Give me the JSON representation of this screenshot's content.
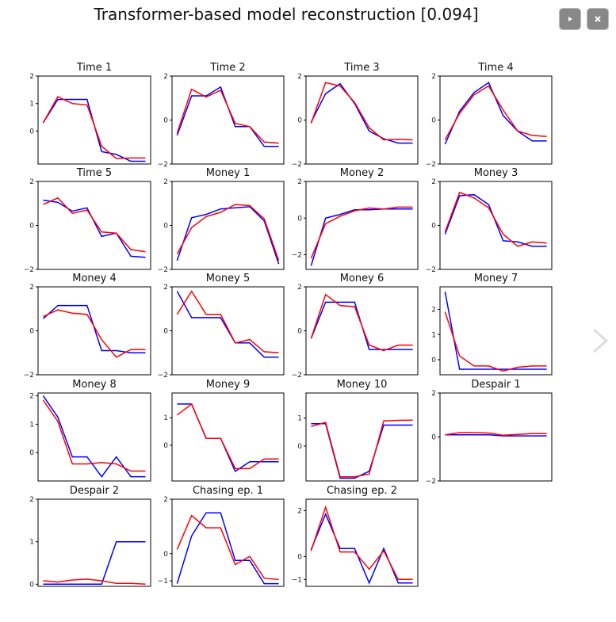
{
  "figure": {
    "title": "Transformer-based model reconstruction [0.094]"
  },
  "icons": {
    "play": "play-icon",
    "close": "close-icon",
    "next": "chevron-right-icon"
  },
  "colors": {
    "actual": "#0000ff",
    "reconstruction": "#ff0000"
  },
  "chart_data": [
    {
      "type": "line",
      "title": "Time 1",
      "ylim": [
        -1.2,
        2
      ],
      "yticks": [
        0,
        1,
        2
      ],
      "x": [
        0,
        1,
        2,
        3,
        4,
        5,
        6,
        7
      ],
      "series": [
        {
          "values": [
            0.3,
            1.15,
            1.15,
            1.15,
            -0.75,
            -0.85,
            -1.1,
            -1.1
          ]
        },
        {
          "values": [
            0.3,
            1.25,
            1.0,
            0.95,
            -0.55,
            -1.0,
            -0.98,
            -0.98
          ]
        }
      ]
    },
    {
      "type": "line",
      "title": "Time 2",
      "ylim": [
        -2,
        2
      ],
      "yticks": [
        -2,
        0,
        2
      ],
      "x": [
        0,
        1,
        2,
        3,
        4,
        5,
        6,
        7
      ],
      "series": [
        {
          "values": [
            -0.7,
            1.1,
            1.1,
            1.5,
            -0.3,
            -0.3,
            -1.2,
            -1.2
          ]
        },
        {
          "values": [
            -0.6,
            1.4,
            1.05,
            1.35,
            -0.15,
            -0.3,
            -1.0,
            -1.05
          ]
        }
      ]
    },
    {
      "type": "line",
      "title": "Time 3",
      "ylim": [
        -2,
        2
      ],
      "yticks": [
        -2,
        0,
        2
      ],
      "x": [
        0,
        1,
        2,
        3,
        4,
        5,
        6,
        7
      ],
      "series": [
        {
          "values": [
            -0.1,
            1.2,
            1.65,
            0.75,
            -0.5,
            -0.85,
            -1.05,
            -1.05
          ]
        },
        {
          "values": [
            -0.15,
            1.7,
            1.55,
            0.8,
            -0.35,
            -0.9,
            -0.88,
            -0.9
          ]
        }
      ]
    },
    {
      "type": "line",
      "title": "Time 4",
      "ylim": [
        -2,
        2
      ],
      "yticks": [
        -2,
        0,
        2
      ],
      "x": [
        0,
        1,
        2,
        3,
        4,
        5,
        6,
        7
      ],
      "series": [
        {
          "values": [
            -1.1,
            0.4,
            1.25,
            1.7,
            0.2,
            -0.5,
            -0.95,
            -0.95
          ]
        },
        {
          "values": [
            -0.9,
            0.3,
            1.15,
            1.55,
            0.45,
            -0.5,
            -0.7,
            -0.75
          ]
        }
      ]
    },
    {
      "type": "line",
      "title": "Time 5",
      "ylim": [
        -2,
        2
      ],
      "yticks": [
        -2,
        0,
        2
      ],
      "x": [
        0,
        1,
        2,
        3,
        4,
        5,
        6,
        7
      ],
      "series": [
        {
          "values": [
            1.15,
            1.05,
            0.65,
            0.8,
            -0.5,
            -0.35,
            -1.4,
            -1.45
          ]
        },
        {
          "values": [
            0.95,
            1.25,
            0.55,
            0.7,
            -0.3,
            -0.35,
            -1.1,
            -1.2
          ]
        }
      ]
    },
    {
      "type": "line",
      "title": "Money 1",
      "ylim": [
        -2,
        2
      ],
      "yticks": [
        -2,
        0,
        2
      ],
      "x": [
        0,
        1,
        2,
        3,
        4,
        5,
        6,
        7
      ],
      "series": [
        {
          "values": [
            -1.6,
            0.35,
            0.5,
            0.75,
            0.8,
            0.85,
            0.2,
            -1.75
          ]
        },
        {
          "values": [
            -1.3,
            -0.1,
            0.4,
            0.6,
            0.95,
            0.9,
            0.3,
            -1.6
          ]
        }
      ]
    },
    {
      "type": "line",
      "title": "Money 2",
      "ylim": [
        -2.8,
        2
      ],
      "yticks": [
        -2,
        0,
        2
      ],
      "x": [
        0,
        1,
        2,
        3,
        4,
        5,
        6,
        7
      ],
      "series": [
        {
          "values": [
            -2.6,
            0.0,
            0.2,
            0.45,
            0.45,
            0.5,
            0.5,
            0.5
          ]
        },
        {
          "values": [
            -2.2,
            -0.3,
            0.1,
            0.4,
            0.55,
            0.5,
            0.6,
            0.6
          ]
        }
      ]
    },
    {
      "type": "line",
      "title": "Money 3",
      "ylim": [
        -2,
        2
      ],
      "yticks": [
        -2,
        0,
        2
      ],
      "x": [
        0,
        1,
        2,
        3,
        4,
        5,
        6,
        7
      ],
      "series": [
        {
          "values": [
            -0.4,
            1.35,
            1.4,
            0.95,
            -0.7,
            -0.75,
            -0.95,
            -0.95
          ]
        },
        {
          "values": [
            -0.3,
            1.5,
            1.25,
            0.8,
            -0.4,
            -0.95,
            -0.75,
            -0.8
          ]
        }
      ]
    },
    {
      "type": "line",
      "title": "Money 4",
      "ylim": [
        -2,
        2
      ],
      "yticks": [
        -2,
        0,
        2
      ],
      "x": [
        0,
        1,
        2,
        3,
        4,
        5,
        6,
        7
      ],
      "series": [
        {
          "values": [
            0.55,
            1.15,
            1.15,
            1.15,
            -0.9,
            -0.9,
            -1.0,
            -1.0
          ]
        },
        {
          "values": [
            0.65,
            0.95,
            0.8,
            0.75,
            -0.4,
            -1.2,
            -0.85,
            -0.85
          ]
        }
      ]
    },
    {
      "type": "line",
      "title": "Money 5",
      "ylim": [
        -2,
        2
      ],
      "yticks": [
        -2,
        0,
        2
      ],
      "x": [
        0,
        1,
        2,
        3,
        4,
        5,
        6,
        7
      ],
      "series": [
        {
          "values": [
            1.8,
            0.6,
            0.6,
            0.6,
            -0.55,
            -0.55,
            -1.2,
            -1.2
          ]
        },
        {
          "values": [
            0.75,
            1.8,
            0.75,
            0.75,
            -0.55,
            -0.4,
            -0.95,
            -1.0
          ]
        }
      ]
    },
    {
      "type": "line",
      "title": "Money 6",
      "ylim": [
        -2,
        2
      ],
      "yticks": [
        -2,
        0,
        2
      ],
      "x": [
        0,
        1,
        2,
        3,
        4,
        5,
        6,
        7
      ],
      "series": [
        {
          "values": [
            -0.35,
            1.3,
            1.3,
            1.3,
            -0.85,
            -0.85,
            -0.85,
            -0.85
          ]
        },
        {
          "values": [
            -0.35,
            1.65,
            1.15,
            1.1,
            -0.65,
            -0.9,
            -0.65,
            -0.65
          ]
        }
      ]
    },
    {
      "type": "line",
      "title": "Money 7",
      "ylim": [
        -0.6,
        2.9
      ],
      "yticks": [
        0,
        1,
        2
      ],
      "x": [
        0,
        1,
        2,
        3,
        4,
        5,
        6,
        7
      ],
      "series": [
        {
          "values": [
            2.7,
            -0.38,
            -0.38,
            -0.38,
            -0.38,
            -0.38,
            -0.38,
            -0.38
          ]
        },
        {
          "values": [
            1.9,
            0.15,
            -0.25,
            -0.25,
            -0.45,
            -0.3,
            -0.25,
            -0.25
          ]
        }
      ]
    },
    {
      "type": "line",
      "title": "Money 8",
      "ylim": [
        -1,
        2.1
      ],
      "yticks": [
        0,
        1,
        2
      ],
      "x": [
        0,
        1,
        2,
        3,
        4,
        5,
        6,
        7
      ],
      "series": [
        {
          "values": [
            2.0,
            1.25,
            -0.15,
            -0.15,
            -0.85,
            -0.15,
            -0.85,
            -0.85
          ]
        },
        {
          "values": [
            1.85,
            1.1,
            -0.4,
            -0.4,
            -0.35,
            -0.4,
            -0.65,
            -0.65
          ]
        }
      ]
    },
    {
      "type": "line",
      "title": "Money 9",
      "ylim": [
        -1.3,
        1.9
      ],
      "yticks": [
        0,
        1
      ],
      "x": [
        0,
        1,
        2,
        3,
        4,
        5,
        6,
        7
      ],
      "series": [
        {
          "values": [
            1.5,
            1.5,
            0.25,
            0.25,
            -0.95,
            -0.6,
            -0.6,
            -0.6
          ]
        },
        {
          "values": [
            1.1,
            1.5,
            0.25,
            0.25,
            -0.85,
            -0.85,
            -0.5,
            -0.5
          ]
        }
      ]
    },
    {
      "type": "line",
      "title": "Money 10",
      "ylim": [
        -1.25,
        1.9
      ],
      "yticks": [
        0,
        1
      ],
      "x": [
        0,
        1,
        2,
        3,
        4,
        5,
        6,
        7
      ],
      "series": [
        {
          "values": [
            0.8,
            0.8,
            -1.15,
            -1.15,
            -0.9,
            0.75,
            0.75,
            0.75
          ]
        },
        {
          "values": [
            0.7,
            0.85,
            -1.1,
            -1.1,
            -1.0,
            0.9,
            0.92,
            0.93
          ]
        }
      ]
    },
    {
      "type": "line",
      "title": "Despair 1",
      "ylim": [
        -2,
        2
      ],
      "yticks": [
        -2,
        0,
        2
      ],
      "x": [
        0,
        1,
        2,
        3,
        4,
        5,
        6,
        7
      ],
      "series": [
        {
          "values": [
            0.1,
            0.1,
            0.1,
            0.1,
            0.05,
            0.05,
            0.05,
            0.05
          ]
        },
        {
          "values": [
            0.1,
            0.2,
            0.2,
            0.18,
            0.08,
            0.12,
            0.15,
            0.15
          ]
        }
      ]
    },
    {
      "type": "line",
      "title": "Despair 2",
      "ylim": [
        -0.05,
        2
      ],
      "yticks": [
        0,
        1,
        2
      ],
      "x": [
        0,
        1,
        2,
        3,
        4,
        5,
        6,
        7
      ],
      "series": [
        {
          "values": [
            0.0,
            0.0,
            0.0,
            0.0,
            0.0,
            1.0,
            1.0,
            1.0
          ]
        },
        {
          "values": [
            0.08,
            0.05,
            0.1,
            0.12,
            0.08,
            0.02,
            0.02,
            0.0
          ]
        }
      ]
    },
    {
      "type": "line",
      "title": "Chasing ep. 1",
      "ylim": [
        -1.2,
        2
      ],
      "yticks": [
        -1,
        0,
        2
      ],
      "x": [
        0,
        1,
        2,
        3,
        4,
        5,
        6,
        7
      ],
      "series": [
        {
          "values": [
            -1.1,
            0.65,
            1.5,
            1.5,
            -0.25,
            -0.25,
            -1.1,
            -1.1
          ]
        },
        {
          "values": [
            0.15,
            1.4,
            0.95,
            0.95,
            -0.4,
            -0.1,
            -0.9,
            -0.95
          ]
        }
      ]
    },
    {
      "type": "line",
      "title": "Chasing ep. 2",
      "ylim": [
        -1.3,
        2.5
      ],
      "yticks": [
        -1,
        0,
        2
      ],
      "x": [
        0,
        1,
        2,
        3,
        4,
        5,
        6,
        7
      ],
      "series": [
        {
          "values": [
            0.3,
            1.85,
            0.35,
            0.35,
            -1.15,
            0.35,
            -1.15,
            -1.15
          ]
        },
        {
          "values": [
            0.25,
            2.15,
            0.2,
            0.2,
            -0.55,
            0.25,
            -1.0,
            -1.0
          ]
        }
      ]
    }
  ]
}
